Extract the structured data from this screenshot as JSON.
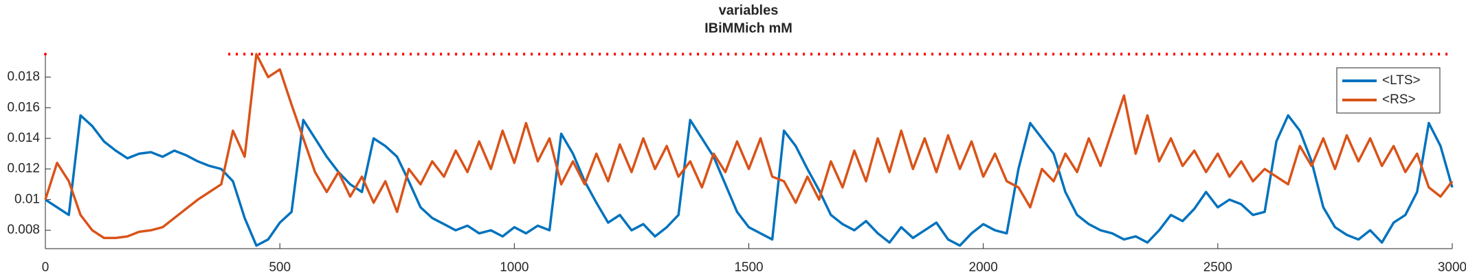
{
  "chart_data": {
    "type": "line",
    "title": "variables",
    "subtitle": "IBiMMich mM",
    "xlim": [
      0,
      3000
    ],
    "ylim": [
      0.0068,
      0.0195
    ],
    "xticks": [
      0,
      500,
      1000,
      1500,
      2000,
      2500,
      3000
    ],
    "yticks": [
      0.008,
      0.01,
      0.012,
      0.014,
      0.016,
      0.018
    ],
    "legend": "upper right",
    "x": [
      0,
      25,
      50,
      75,
      100,
      125,
      150,
      175,
      200,
      225,
      250,
      275,
      300,
      325,
      350,
      375,
      400,
      425,
      450,
      475,
      500,
      525,
      550,
      575,
      600,
      625,
      650,
      675,
      700,
      725,
      750,
      775,
      800,
      825,
      850,
      875,
      900,
      925,
      950,
      975,
      1000,
      1025,
      1050,
      1075,
      1100,
      1125,
      1150,
      1175,
      1200,
      1225,
      1250,
      1275,
      1300,
      1325,
      1350,
      1375,
      1400,
      1425,
      1450,
      1475,
      1500,
      1525,
      1550,
      1575,
      1600,
      1625,
      1650,
      1675,
      1700,
      1725,
      1750,
      1775,
      1800,
      1825,
      1850,
      1875,
      1900,
      1925,
      1950,
      1975,
      2000,
      2025,
      2050,
      2075,
      2100,
      2125,
      2150,
      2175,
      2200,
      2225,
      2250,
      2275,
      2300,
      2325,
      2350,
      2375,
      2400,
      2425,
      2450,
      2475,
      2500,
      2525,
      2550,
      2575,
      2600,
      2625,
      2650,
      2675,
      2700,
      2725,
      2750,
      2775,
      2800,
      2825,
      2850,
      2875,
      2900,
      2925,
      2950,
      2975,
      3000
    ],
    "series": [
      {
        "name": "<LTS>",
        "color": "#0072bd",
        "values": [
          0.01,
          0.0095,
          0.009,
          0.0155,
          0.0148,
          0.0138,
          0.0132,
          0.0127,
          0.013,
          0.0131,
          0.0128,
          0.0132,
          0.0129,
          0.0125,
          0.0122,
          0.012,
          0.0112,
          0.0088,
          0.007,
          0.0074,
          0.0085,
          0.0092,
          0.0152,
          0.014,
          0.0128,
          0.0118,
          0.011,
          0.0105,
          0.014,
          0.0135,
          0.0128,
          0.0112,
          0.0095,
          0.0088,
          0.0084,
          0.008,
          0.0083,
          0.0078,
          0.008,
          0.0076,
          0.0082,
          0.0078,
          0.0083,
          0.008,
          0.0143,
          0.013,
          0.0112,
          0.0098,
          0.0085,
          0.009,
          0.008,
          0.0084,
          0.0076,
          0.0082,
          0.009,
          0.0152,
          0.014,
          0.0128,
          0.011,
          0.0092,
          0.0082,
          0.0078,
          0.0074,
          0.0145,
          0.0135,
          0.012,
          0.0106,
          0.009,
          0.0084,
          0.008,
          0.0086,
          0.0078,
          0.0072,
          0.0082,
          0.0075,
          0.008,
          0.0085,
          0.0074,
          0.007,
          0.0078,
          0.0084,
          0.008,
          0.0078,
          0.012,
          0.015,
          0.014,
          0.013,
          0.0105,
          0.009,
          0.0084,
          0.008,
          0.0078,
          0.0074,
          0.0076,
          0.0072,
          0.008,
          0.009,
          0.0086,
          0.0094,
          0.0105,
          0.0095,
          0.01,
          0.0097,
          0.009,
          0.0092,
          0.0138,
          0.0155,
          0.0145,
          0.0125,
          0.0095,
          0.0082,
          0.0077,
          0.0074,
          0.008,
          0.0072,
          0.0085,
          0.009,
          0.0105,
          0.015,
          0.0135,
          0.0108
        ]
      },
      {
        "name": "<RS>",
        "color": "#d95319",
        "values": [
          0.01,
          0.0124,
          0.0112,
          0.009,
          0.008,
          0.0075,
          0.0075,
          0.0076,
          0.0079,
          0.008,
          0.0082,
          0.0088,
          0.0094,
          0.01,
          0.0105,
          0.011,
          0.0145,
          0.0128,
          0.0195,
          0.018,
          0.0185,
          0.0162,
          0.014,
          0.0118,
          0.0105,
          0.0118,
          0.0102,
          0.0115,
          0.0098,
          0.0112,
          0.0092,
          0.012,
          0.011,
          0.0125,
          0.0115,
          0.0132,
          0.0118,
          0.0138,
          0.012,
          0.0145,
          0.0124,
          0.015,
          0.0125,
          0.014,
          0.011,
          0.0125,
          0.011,
          0.013,
          0.0112,
          0.0136,
          0.0118,
          0.014,
          0.012,
          0.0135,
          0.0115,
          0.0125,
          0.0108,
          0.013,
          0.0118,
          0.0138,
          0.012,
          0.014,
          0.0115,
          0.0112,
          0.0098,
          0.0115,
          0.01,
          0.0125,
          0.0108,
          0.0132,
          0.0112,
          0.014,
          0.0118,
          0.0145,
          0.012,
          0.014,
          0.0118,
          0.0142,
          0.012,
          0.0138,
          0.0115,
          0.013,
          0.0112,
          0.0108,
          0.0095,
          0.012,
          0.0112,
          0.013,
          0.0118,
          0.014,
          0.0122,
          0.0145,
          0.0168,
          0.013,
          0.0155,
          0.0125,
          0.014,
          0.0122,
          0.0132,
          0.0118,
          0.013,
          0.0115,
          0.0125,
          0.0112,
          0.012,
          0.0115,
          0.011,
          0.0135,
          0.0122,
          0.014,
          0.012,
          0.0142,
          0.0125,
          0.014,
          0.0122,
          0.0135,
          0.0118,
          0.013,
          0.0108,
          0.0102,
          0.0112
        ]
      }
    ],
    "dotted_line": {
      "color": "#ff0000",
      "y": 0.0195,
      "x_start": 390,
      "x_end": 3000,
      "point_x": 0
    }
  }
}
